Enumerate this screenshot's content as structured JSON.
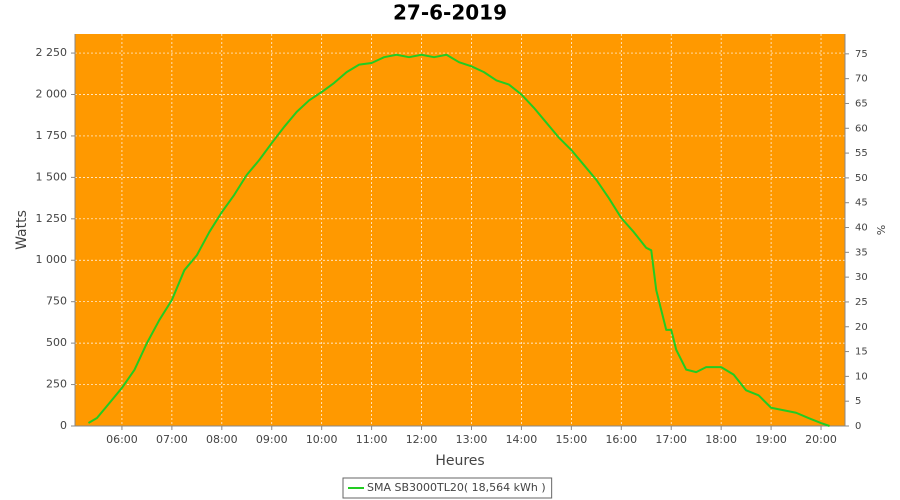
{
  "chart_data": {
    "type": "line",
    "title": "27-6-2019",
    "x_label": "Heures",
    "y_label": "Watts",
    "y2_label": "%",
    "x": [
      5.33,
      5.5,
      5.75,
      6.0,
      6.25,
      6.5,
      6.75,
      7.0,
      7.25,
      7.5,
      7.75,
      8.0,
      8.25,
      8.5,
      8.75,
      9.0,
      9.25,
      9.5,
      9.75,
      10.0,
      10.25,
      10.5,
      10.75,
      11.0,
      11.25,
      11.5,
      11.75,
      12.0,
      12.25,
      12.5,
      12.75,
      13.0,
      13.25,
      13.5,
      13.75,
      14.0,
      14.25,
      14.5,
      14.75,
      15.0,
      15.25,
      15.5,
      15.75,
      16.0,
      16.25,
      16.5,
      16.6,
      16.7,
      16.9,
      17.0,
      17.1,
      17.3,
      17.5,
      17.7,
      18.0,
      18.25,
      18.5,
      18.75,
      19.0,
      19.25,
      19.5,
      19.75,
      20.0,
      20.17
    ],
    "series": [
      {
        "name": "SMA SB3000TL20( 18,564 kWh )",
        "color": "#22cc22",
        "values": [
          18,
          48,
          139,
          230,
          338,
          500,
          640,
          760,
          940,
          1030,
          1170,
          1290,
          1395,
          1515,
          1605,
          1707,
          1805,
          1895,
          1965,
          2015,
          2070,
          2135,
          2180,
          2190,
          2225,
          2240,
          2225,
          2240,
          2225,
          2240,
          2195,
          2170,
          2135,
          2085,
          2060,
          2000,
          1920,
          1830,
          1740,
          1665,
          1575,
          1485,
          1375,
          1255,
          1170,
          1075,
          1060,
          820,
          580,
          580,
          460,
          340,
          325,
          355,
          355,
          310,
          215,
          185,
          110,
          95,
          80,
          48,
          18,
          0
        ]
      }
    ],
    "xlim": [
      5.06,
      20.48
    ],
    "xticks": [
      {
        "value": 6,
        "label": "06:00"
      },
      {
        "value": 7,
        "label": "07:00"
      },
      {
        "value": 8,
        "label": "08:00"
      },
      {
        "value": 9,
        "label": "09:00"
      },
      {
        "value": 10,
        "label": "10:00"
      },
      {
        "value": 11,
        "label": "11:00"
      },
      {
        "value": 12,
        "label": "12:00"
      },
      {
        "value": 13,
        "label": "13:00"
      },
      {
        "value": 14,
        "label": "14:00"
      },
      {
        "value": 15,
        "label": "15:00"
      },
      {
        "value": 16,
        "label": "16:00"
      },
      {
        "value": 17,
        "label": "17:00"
      },
      {
        "value": 18,
        "label": "18:00"
      },
      {
        "value": 19,
        "label": "19:00"
      },
      {
        "value": 20,
        "label": "20:00"
      }
    ],
    "ylim": [
      0,
      2365
    ],
    "yticks": [
      0,
      250,
      500,
      750,
      {
        "value": 1000,
        "label": "1 000"
      },
      {
        "value": 1250,
        "label": "1 250"
      },
      {
        "value": 1500,
        "label": "1 500"
      },
      {
        "value": 1750,
        "label": "1 750"
      },
      {
        "value": 2000,
        "label": "2 000"
      },
      {
        "value": 2250,
        "label": "2 250"
      }
    ],
    "y2lim": [
      0,
      79
    ],
    "y2ticks": [
      0,
      5,
      10,
      15,
      20,
      25,
      30,
      35,
      40,
      45,
      50,
      55,
      60,
      65,
      70,
      75
    ],
    "grid": true,
    "background": "#ff9900",
    "legend": "bottom"
  }
}
